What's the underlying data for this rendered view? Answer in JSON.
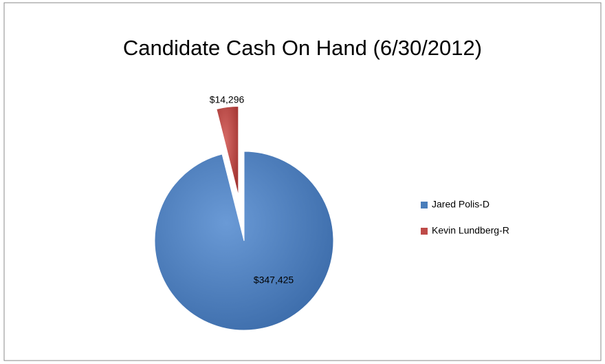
{
  "chart_data": {
    "type": "pie",
    "title": "Candidate Cash On Hand (6/30/2012)",
    "categories": [
      "Jared Polis-D",
      "Kevin Lundberg-R"
    ],
    "values": [
      347425,
      14296
    ],
    "value_labels": [
      "$347,425",
      "$14,296"
    ],
    "colors": [
      "#4a7ebb",
      "#be4b48"
    ],
    "legend": "right"
  }
}
